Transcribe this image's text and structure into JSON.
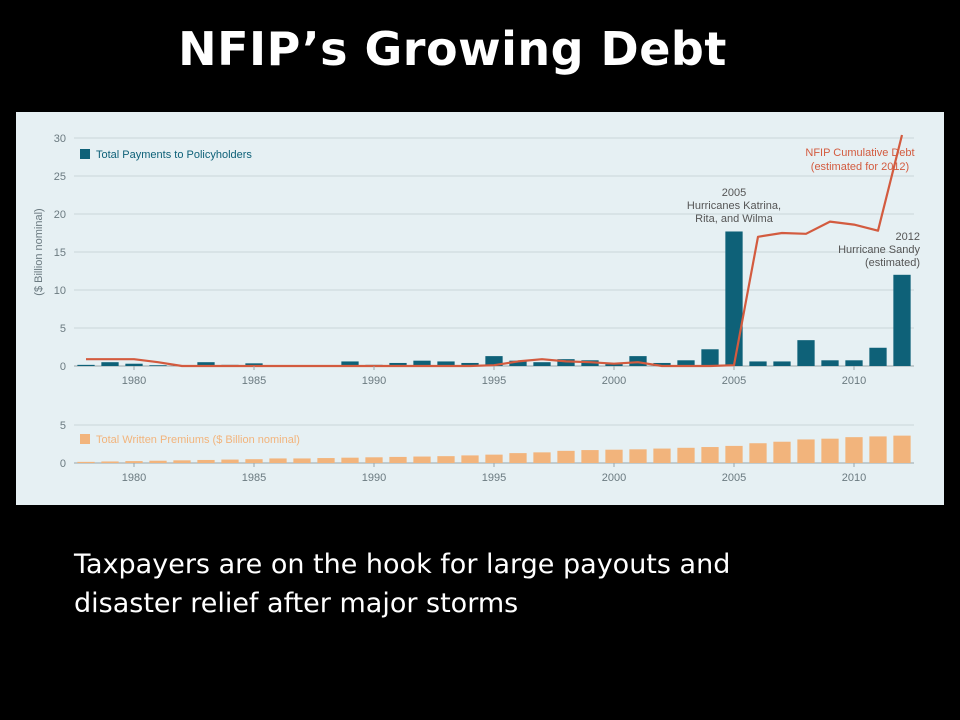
{
  "slide": {
    "title": "NFIP’s Growing Debt",
    "caption_lines": [
      "Taxpayers are on the hook for large payouts and",
      "disaster relief after major storms"
    ]
  },
  "colors": {
    "background": "#000000",
    "panel": "#e6f0f3",
    "payments_bar": "#0e6178",
    "premiums_bar": "#f2b47c",
    "debt_line": "#d35b3f",
    "axis_text": "#6b7a80"
  },
  "chart_data": [
    {
      "type": "bar",
      "ylabel": "($ Billion nominal)",
      "ylim": [
        0,
        30
      ],
      "yticks": [
        0,
        5,
        10,
        15,
        20,
        25,
        30
      ],
      "xlim": [
        1977.5,
        2012.5
      ],
      "xticks": [
        1980,
        1985,
        1990,
        1995,
        2000,
        2005,
        2010
      ],
      "grid": true,
      "legend": {
        "placement": "top-left",
        "label": "Total Payments to Policyholders"
      },
      "x": [
        1978,
        1979,
        1980,
        1981,
        1982,
        1983,
        1984,
        1985,
        1986,
        1987,
        1988,
        1989,
        1990,
        1991,
        1992,
        1993,
        1994,
        1995,
        1996,
        1997,
        1998,
        1999,
        2000,
        2001,
        2002,
        2003,
        2004,
        2005,
        2006,
        2007,
        2008,
        2009,
        2010,
        2011,
        2012
      ],
      "series": [
        {
          "name": "Total Payments to Policyholders",
          "type": "bar",
          "values": [
            0.15,
            0.5,
            0.3,
            0.1,
            0.1,
            0.5,
            0.15,
            0.35,
            0.05,
            0.1,
            0.05,
            0.6,
            0.15,
            0.4,
            0.7,
            0.6,
            0.4,
            1.3,
            0.7,
            0.5,
            0.9,
            0.75,
            0.25,
            1.3,
            0.4,
            0.75,
            2.2,
            17.7,
            0.6,
            0.6,
            3.4,
            0.75,
            0.75,
            2.4,
            12.0
          ]
        },
        {
          "name": "NFIP Cumulative Debt",
          "type": "line",
          "values": [
            0.9,
            0.9,
            0.9,
            0.5,
            0.0,
            0.0,
            0.0,
            0.0,
            0.0,
            0.0,
            0.0,
            0.0,
            0.0,
            0.0,
            0.0,
            0.0,
            0.0,
            0.1,
            0.6,
            0.9,
            0.6,
            0.5,
            0.3,
            0.5,
            0.0,
            0.0,
            0.0,
            0.1,
            17.0,
            17.5,
            17.4,
            19.0,
            18.6,
            17.8,
            30.4
          ]
        }
      ],
      "annotations": [
        {
          "x": 2012,
          "lines": [
            "NFIP Cumulative Debt",
            "(estimated for 2012)"
          ]
        },
        {
          "x": 2005,
          "lines": [
            "2005",
            "Hurricanes Katrina,",
            "Rita, and Wilma"
          ]
        },
        {
          "x": 2012,
          "lines": [
            "2012",
            "Hurricane Sandy",
            "(estimated)"
          ]
        }
      ]
    },
    {
      "type": "bar",
      "ylim": [
        0,
        5
      ],
      "yticks": [
        0,
        5
      ],
      "xlim": [
        1977.5,
        2012.5
      ],
      "xticks": [
        1980,
        1985,
        1990,
        1995,
        2000,
        2005,
        2010
      ],
      "grid": true,
      "legend": {
        "placement": "top-left",
        "label": "Total Written Premiums ($ Billion nominal)"
      },
      "x": [
        1978,
        1979,
        1980,
        1981,
        1982,
        1983,
        1984,
        1985,
        1986,
        1987,
        1988,
        1989,
        1990,
        1991,
        1992,
        1993,
        1994,
        1995,
        1996,
        1997,
        1998,
        1999,
        2000,
        2001,
        2002,
        2003,
        2004,
        2005,
        2006,
        2007,
        2008,
        2009,
        2010,
        2011,
        2012
      ],
      "series": [
        {
          "name": "Total Written Premiums ($ Billion nominal)",
          "values": [
            0.15,
            0.2,
            0.25,
            0.3,
            0.35,
            0.4,
            0.45,
            0.5,
            0.6,
            0.6,
            0.65,
            0.7,
            0.75,
            0.8,
            0.85,
            0.9,
            1.0,
            1.1,
            1.3,
            1.4,
            1.6,
            1.7,
            1.75,
            1.8,
            1.9,
            2.0,
            2.1,
            2.25,
            2.6,
            2.8,
            3.1,
            3.2,
            3.4,
            3.5,
            3.6
          ]
        }
      ]
    }
  ]
}
